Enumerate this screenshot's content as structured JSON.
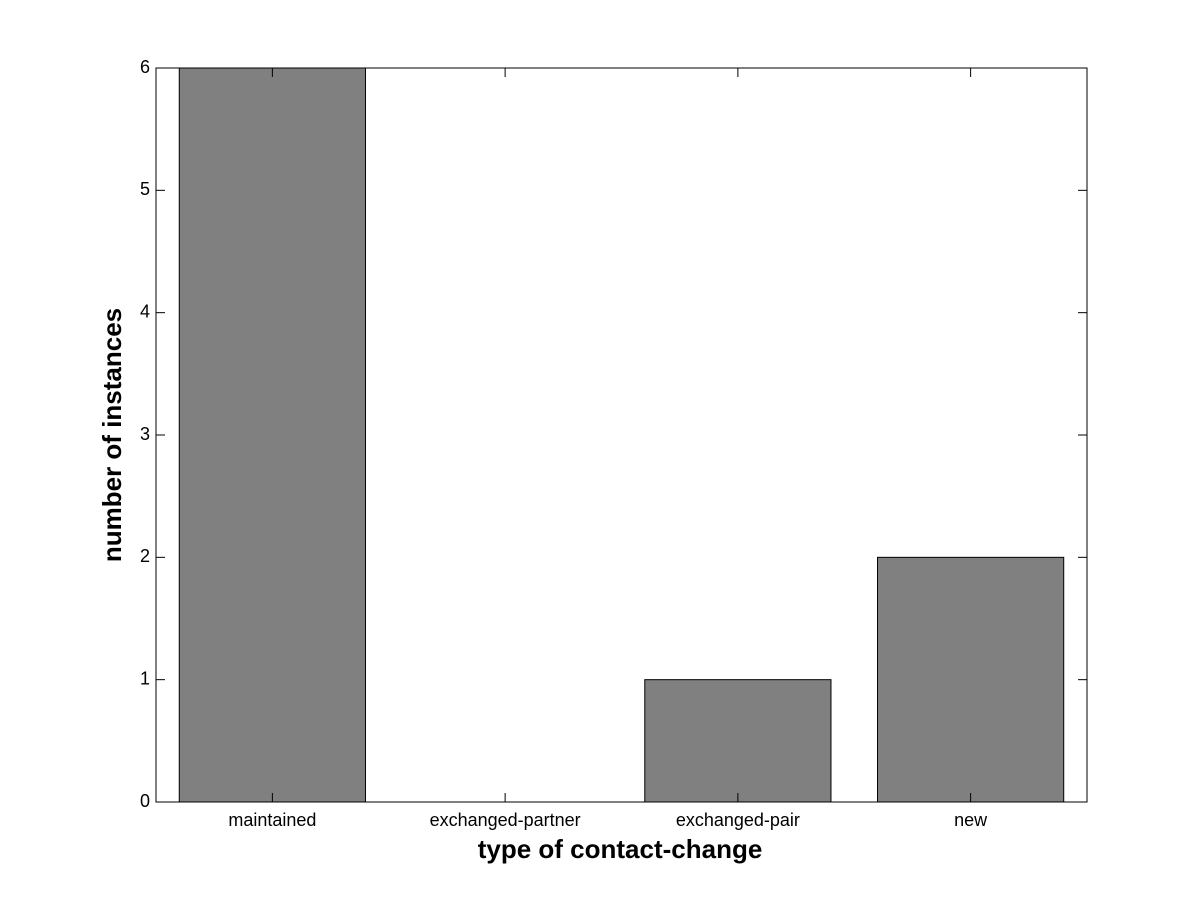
{
  "chart_data": {
    "type": "bar",
    "xlabel": "type of contact-change",
    "ylabel": "number of instances",
    "categories": [
      "maintained",
      "exchanged-partner",
      "exchanged-pair",
      "new"
    ],
    "values": [
      6,
      0,
      1,
      2
    ],
    "color": "#808080",
    "ylim": [
      0,
      6
    ],
    "yticks": [
      0,
      1,
      2,
      3,
      4,
      5,
      6
    ],
    "grid": false
  }
}
